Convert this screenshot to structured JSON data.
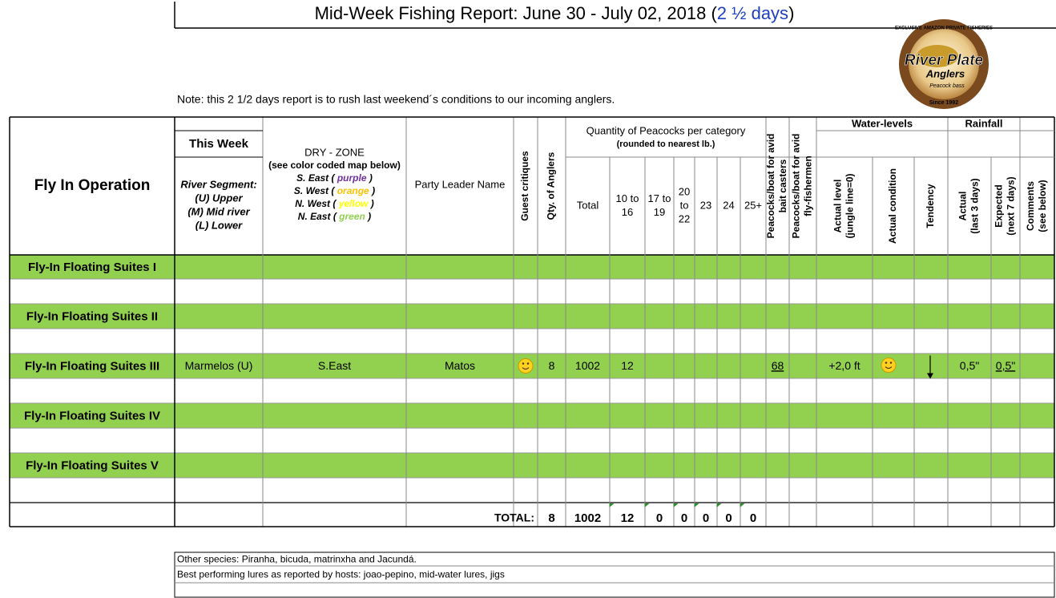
{
  "header": {
    "title_parts": [
      "Mid-Week Fishing Report:  June 30 - July 02, 2018 (",
      "2 ½ days",
      ")"
    ],
    "note": "Note:  this 2 1/2 days report is to rush last weekend´s conditions to our incoming anglers.",
    "logo": {
      "top": "EXCLUSIVE AMAZON PRIVATE FISHERIES",
      "name": "River Plate",
      "sub": "Anglers",
      "tag": "Peacock bass",
      "since": "Since 1992"
    }
  },
  "table": {
    "headers": {
      "operation": "Fly In Operation",
      "this_week": "This Week",
      "segment": [
        "River Segment:",
        "(U) Upper",
        "(M) Mid river",
        "(L) Lower"
      ],
      "dry_zone": "DRY - ZONE",
      "dry_zone_note": "(see color coded map below)",
      "zones": [
        [
          "S. East ( ",
          "purple",
          " )"
        ],
        [
          "S. West ( ",
          "orange",
          " )"
        ],
        [
          "N. West ( ",
          "yellow",
          " )"
        ],
        [
          "N. East ( ",
          "green",
          " )"
        ]
      ],
      "leader": "Party Leader Name",
      "critiques": "Guest critiques",
      "anglers": "Qty. of Anglers",
      "quantity": "Quantity of Peacocks per category",
      "quantity_note": "(rounded to nearest lb.)",
      "categories": [
        [
          "Total"
        ],
        [
          "10 to",
          "16"
        ],
        [
          "17 to",
          "19"
        ],
        [
          "20",
          "to",
          "22"
        ],
        [
          "23"
        ],
        [
          "24"
        ],
        [
          "25+"
        ]
      ],
      "bait": [
        "Peacocks/boat for avid",
        "bait casters"
      ],
      "fly": [
        "Peacocks/boat for avid",
        "fly-fishermen"
      ],
      "water_levels": "Water-levels",
      "actual_level": [
        "Actual level",
        "(jungle line=0)"
      ],
      "actual_condition": [
        "Actual condition"
      ],
      "tendency": [
        "Tendency"
      ],
      "rainfall": "Rainfall",
      "rain_actual": [
        "Actual",
        "(last 3 days)"
      ],
      "rain_expected": [
        "Expected",
        "(next 7 days)"
      ],
      "comments": [
        "Comments",
        "(see below)"
      ]
    },
    "rows": [
      {
        "name": "Fly-In Floating Suites I"
      },
      {
        "name": "Fly-In Floating Suites II"
      },
      {
        "name": "Fly-In Floating Suites III",
        "segment": "Marmelos (U)",
        "zone": "S.East",
        "leader": "Matos",
        "anglers": "8",
        "total": "1002",
        "c10_16": "12",
        "bait": "68",
        "level": "+2,0 ft",
        "rain_actual": "0,5\"",
        "rain_expected": "0,5\""
      },
      {
        "name": "Fly-In Floating Suites IV"
      },
      {
        "name": "Fly-In Floating Suites V"
      }
    ],
    "total": {
      "label": "TOTAL:",
      "values": [
        "8",
        "1002",
        "12",
        "0",
        "0",
        "0",
        "0",
        "0"
      ]
    }
  },
  "footer": [
    "Other species: Piranha, bicuda, matrinxha and Jacundá.",
    "Best performing lures as reported by hosts: joao-pepino, mid-water lures, jigs"
  ]
}
